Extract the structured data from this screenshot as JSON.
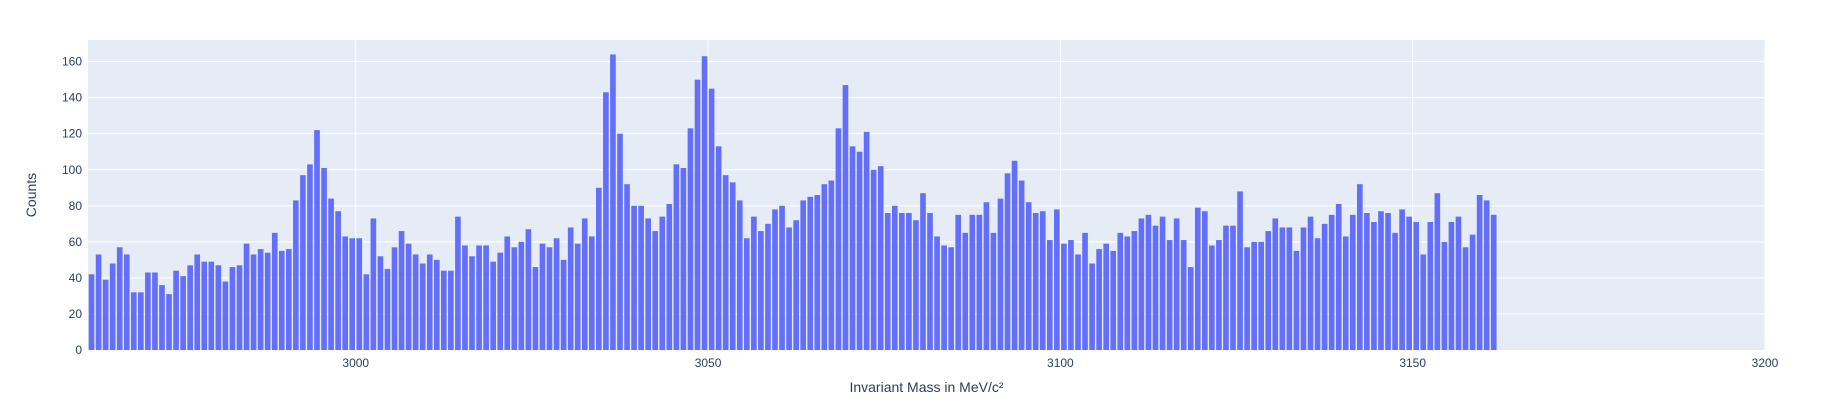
{
  "chart_data": {
    "type": "bar",
    "xlabel": "Invariant Mass in MeV/c²",
    "ylabel": "Counts",
    "xlim": [
      2962,
      3200
    ],
    "ylim": [
      0,
      172
    ],
    "bin_start": 2962,
    "bin_width": 1,
    "x_ticks": [
      3000,
      3050,
      3100,
      3150,
      3200
    ],
    "y_ticks": [
      0,
      20,
      40,
      60,
      80,
      100,
      120,
      140,
      160
    ],
    "grid": true,
    "values": [
      42,
      53,
      39,
      48,
      57,
      53,
      32,
      32,
      43,
      43,
      36,
      31,
      44,
      41,
      47,
      53,
      49,
      49,
      47,
      38,
      46,
      47,
      59,
      53,
      56,
      54,
      65,
      55,
      56,
      83,
      97,
      103,
      122,
      101,
      84,
      77,
      63,
      62,
      62,
      42,
      73,
      52,
      45,
      57,
      66,
      59,
      53,
      48,
      53,
      50,
      44,
      44,
      74,
      58,
      52,
      58,
      58,
      49,
      54,
      63,
      57,
      60,
      67,
      46,
      59,
      57,
      62,
      50,
      68,
      59,
      73,
      63,
      90,
      143,
      164,
      120,
      92,
      80,
      80,
      73,
      66,
      74,
      81,
      103,
      101,
      123,
      150,
      163,
      145,
      113,
      97,
      93,
      83,
      62,
      74,
      66,
      70,
      78,
      80,
      68,
      72,
      83,
      85,
      86,
      92,
      94,
      123,
      147,
      113,
      110,
      121,
      100,
      102,
      76,
      80,
      76,
      76,
      72,
      87,
      76,
      63,
      58,
      57,
      75,
      65,
      75,
      75,
      82,
      65,
      84,
      98,
      105,
      94,
      82,
      76,
      77,
      61,
      78,
      59,
      61,
      53,
      65,
      48,
      56,
      59,
      55,
      65,
      63,
      66,
      73,
      75,
      69,
      74,
      61,
      73,
      61,
      46,
      79,
      77,
      58,
      61,
      69,
      69,
      88,
      57,
      60,
      60,
      66,
      73,
      68,
      68,
      55,
      68,
      74,
      62,
      70,
      75,
      81,
      63,
      75,
      92,
      76,
      71,
      77,
      76,
      65,
      78,
      74,
      71,
      53,
      71,
      87,
      60,
      71,
      74,
      57,
      64,
      86,
      83,
      75
    ],
    "colors": {
      "bar": "#636efa",
      "plot_bg": "#e5ecf6",
      "grid": "#ffffff",
      "text": "#2a3f5f"
    }
  }
}
